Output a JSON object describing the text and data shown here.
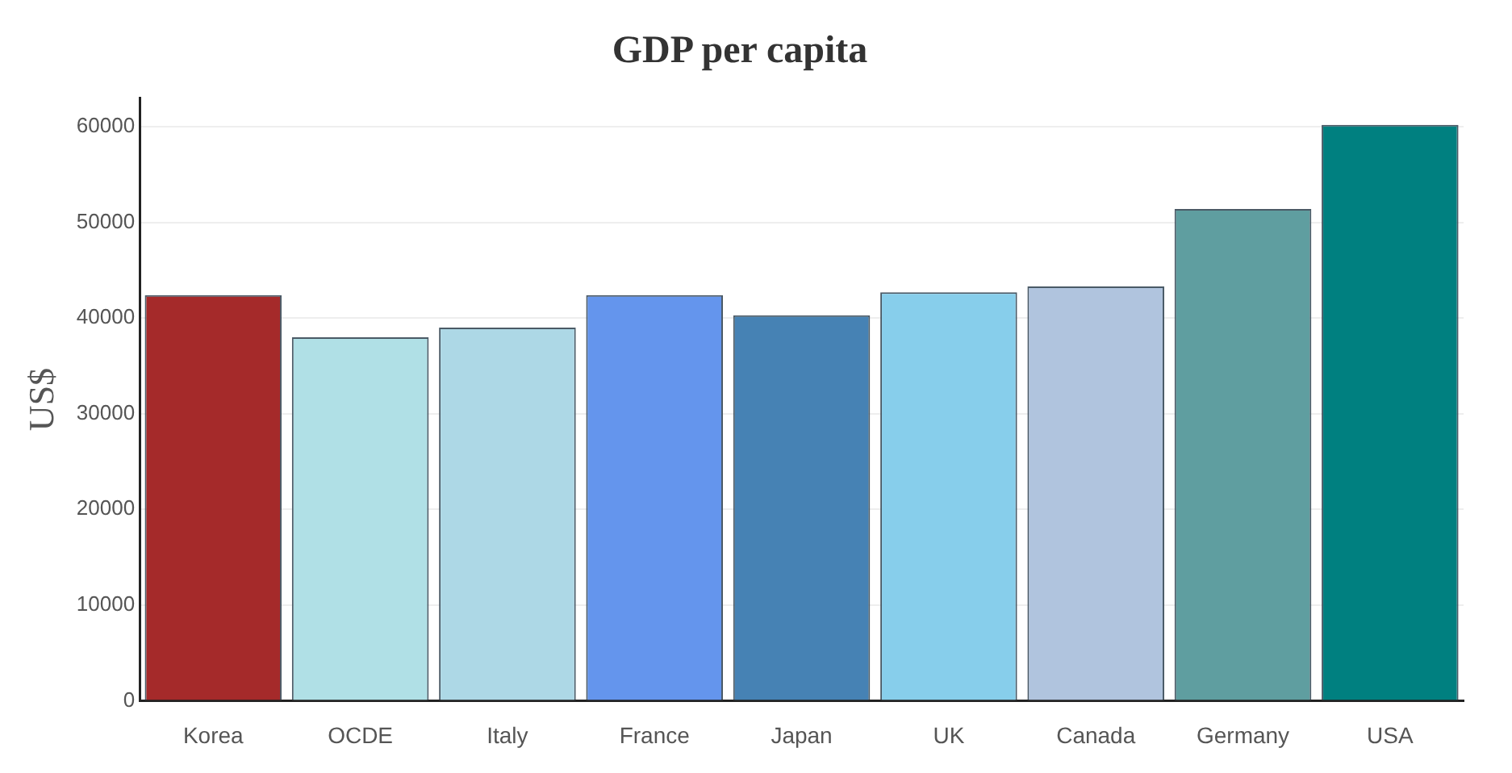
{
  "chart_data": {
    "type": "bar",
    "title": "GDP per capita",
    "ylabel": "US$",
    "categories": [
      "Korea",
      "OCDE",
      "Italy",
      "France",
      "Japan",
      "UK",
      "Canada",
      "Germany",
      "USA"
    ],
    "values": [
      42400,
      38000,
      39000,
      42400,
      40300,
      42700,
      43300,
      51400,
      60200
    ],
    "colors": [
      "#a52a2a",
      "#b0e0e6",
      "#add8e6",
      "#6495ed",
      "#4682b4",
      "#87ceeb",
      "#b0c4de",
      "#5f9ea0",
      "#008080"
    ],
    "ylim": [
      0,
      63000
    ],
    "yticks": [
      0,
      10000,
      20000,
      30000,
      40000,
      50000,
      60000
    ],
    "grid": "y",
    "legend": false
  }
}
